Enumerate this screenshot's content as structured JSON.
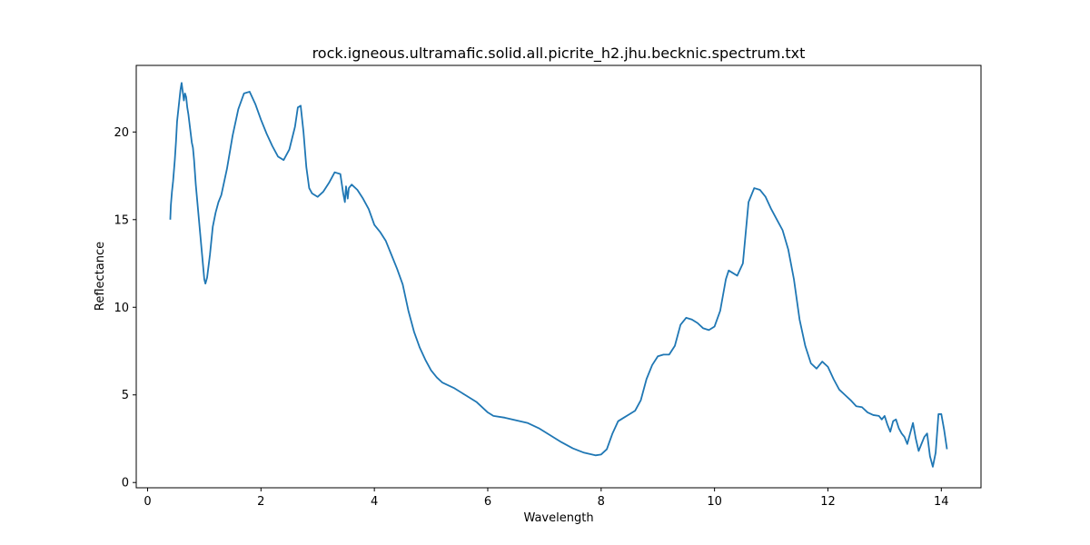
{
  "chart_data": {
    "type": "line",
    "title": "rock.igneous.ultramafic.solid.all.picrite_h2.jhu.becknic.spectrum.txt",
    "xlabel": "Wavelength",
    "ylabel": "Reflectance",
    "xlim": [
      -0.2,
      14.7
    ],
    "ylim": [
      -0.3,
      23.8
    ],
    "x_ticks": [
      0,
      2,
      4,
      6,
      8,
      10,
      12,
      14
    ],
    "y_ticks": [
      0,
      5,
      10,
      15,
      20
    ],
    "grid": false,
    "legend": "none",
    "series": [
      {
        "color": "#1f77b4",
        "points": [
          [
            0.4,
            15.0
          ],
          [
            0.41,
            15.8
          ],
          [
            0.43,
            16.6
          ],
          [
            0.45,
            17.2
          ],
          [
            0.48,
            18.4
          ],
          [
            0.5,
            19.4
          ],
          [
            0.52,
            20.6
          ],
          [
            0.55,
            21.5
          ],
          [
            0.58,
            22.4
          ],
          [
            0.6,
            22.8
          ],
          [
            0.62,
            22.3
          ],
          [
            0.64,
            21.8
          ],
          [
            0.66,
            22.2
          ],
          [
            0.68,
            22.0
          ],
          [
            0.7,
            21.4
          ],
          [
            0.72,
            21.0
          ],
          [
            0.75,
            20.2
          ],
          [
            0.78,
            19.4
          ],
          [
            0.8,
            19.1
          ],
          [
            0.82,
            18.4
          ],
          [
            0.85,
            17.0
          ],
          [
            0.9,
            15.2
          ],
          [
            0.95,
            13.4
          ],
          [
            1.0,
            11.6
          ],
          [
            1.02,
            11.35
          ],
          [
            1.05,
            11.7
          ],
          [
            1.1,
            13.0
          ],
          [
            1.15,
            14.6
          ],
          [
            1.2,
            15.4
          ],
          [
            1.25,
            16.0
          ],
          [
            1.3,
            16.4
          ],
          [
            1.4,
            17.9
          ],
          [
            1.5,
            19.8
          ],
          [
            1.6,
            21.3
          ],
          [
            1.7,
            22.2
          ],
          [
            1.8,
            22.3
          ],
          [
            1.9,
            21.6
          ],
          [
            2.0,
            20.7
          ],
          [
            2.1,
            19.9
          ],
          [
            2.2,
            19.2
          ],
          [
            2.3,
            18.6
          ],
          [
            2.4,
            18.4
          ],
          [
            2.5,
            19.0
          ],
          [
            2.6,
            20.3
          ],
          [
            2.65,
            21.4
          ],
          [
            2.7,
            21.5
          ],
          [
            2.75,
            20.0
          ],
          [
            2.8,
            18.0
          ],
          [
            2.85,
            16.8
          ],
          [
            2.9,
            16.5
          ],
          [
            3.0,
            16.3
          ],
          [
            3.1,
            16.6
          ],
          [
            3.2,
            17.1
          ],
          [
            3.3,
            17.7
          ],
          [
            3.4,
            17.6
          ],
          [
            3.45,
            16.5
          ],
          [
            3.48,
            16.0
          ],
          [
            3.5,
            16.9
          ],
          [
            3.53,
            16.2
          ],
          [
            3.55,
            16.8
          ],
          [
            3.6,
            17.0
          ],
          [
            3.7,
            16.7
          ],
          [
            3.8,
            16.2
          ],
          [
            3.9,
            15.6
          ],
          [
            4.0,
            14.7
          ],
          [
            4.1,
            14.3
          ],
          [
            4.2,
            13.8
          ],
          [
            4.3,
            13.0
          ],
          [
            4.4,
            12.2
          ],
          [
            4.5,
            11.3
          ],
          [
            4.6,
            9.8
          ],
          [
            4.7,
            8.6
          ],
          [
            4.8,
            7.7
          ],
          [
            4.9,
            7.0
          ],
          [
            5.0,
            6.4
          ],
          [
            5.1,
            6.0
          ],
          [
            5.2,
            5.7
          ],
          [
            5.4,
            5.4
          ],
          [
            5.6,
            5.0
          ],
          [
            5.8,
            4.6
          ],
          [
            6.0,
            4.0
          ],
          [
            6.1,
            3.8
          ],
          [
            6.3,
            3.7
          ],
          [
            6.5,
            3.55
          ],
          [
            6.7,
            3.4
          ],
          [
            6.9,
            3.1
          ],
          [
            7.1,
            2.7
          ],
          [
            7.3,
            2.3
          ],
          [
            7.5,
            1.95
          ],
          [
            7.7,
            1.7
          ],
          [
            7.9,
            1.55
          ],
          [
            8.0,
            1.6
          ],
          [
            8.1,
            1.9
          ],
          [
            8.2,
            2.8
          ],
          [
            8.3,
            3.5
          ],
          [
            8.4,
            3.7
          ],
          [
            8.5,
            3.9
          ],
          [
            8.6,
            4.1
          ],
          [
            8.7,
            4.7
          ],
          [
            8.8,
            5.9
          ],
          [
            8.9,
            6.7
          ],
          [
            9.0,
            7.2
          ],
          [
            9.1,
            7.3
          ],
          [
            9.2,
            7.3
          ],
          [
            9.3,
            7.8
          ],
          [
            9.4,
            9.0
          ],
          [
            9.5,
            9.4
          ],
          [
            9.6,
            9.3
          ],
          [
            9.7,
            9.1
          ],
          [
            9.8,
            8.8
          ],
          [
            9.9,
            8.7
          ],
          [
            10.0,
            8.9
          ],
          [
            10.1,
            9.8
          ],
          [
            10.2,
            11.6
          ],
          [
            10.25,
            12.1
          ],
          [
            10.3,
            12.0
          ],
          [
            10.4,
            11.8
          ],
          [
            10.5,
            12.5
          ],
          [
            10.6,
            16.0
          ],
          [
            10.7,
            16.8
          ],
          [
            10.8,
            16.7
          ],
          [
            10.9,
            16.3
          ],
          [
            11.0,
            15.6
          ],
          [
            11.1,
            15.0
          ],
          [
            11.2,
            14.4
          ],
          [
            11.3,
            13.3
          ],
          [
            11.4,
            11.6
          ],
          [
            11.5,
            9.3
          ],
          [
            11.6,
            7.8
          ],
          [
            11.7,
            6.8
          ],
          [
            11.8,
            6.5
          ],
          [
            11.9,
            6.9
          ],
          [
            12.0,
            6.6
          ],
          [
            12.1,
            5.9
          ],
          [
            12.2,
            5.3
          ],
          [
            12.3,
            5.0
          ],
          [
            12.4,
            4.7
          ],
          [
            12.5,
            4.35
          ],
          [
            12.6,
            4.3
          ],
          [
            12.7,
            4.0
          ],
          [
            12.8,
            3.85
          ],
          [
            12.9,
            3.8
          ],
          [
            12.95,
            3.6
          ],
          [
            13.0,
            3.8
          ],
          [
            13.05,
            3.3
          ],
          [
            13.1,
            2.9
          ],
          [
            13.15,
            3.5
          ],
          [
            13.2,
            3.6
          ],
          [
            13.25,
            3.1
          ],
          [
            13.3,
            2.8
          ],
          [
            13.35,
            2.6
          ],
          [
            13.4,
            2.2
          ],
          [
            13.45,
            2.8
          ],
          [
            13.5,
            3.4
          ],
          [
            13.55,
            2.5
          ],
          [
            13.6,
            1.8
          ],
          [
            13.65,
            2.2
          ],
          [
            13.7,
            2.6
          ],
          [
            13.75,
            2.8
          ],
          [
            13.8,
            1.5
          ],
          [
            13.85,
            0.9
          ],
          [
            13.9,
            1.7
          ],
          [
            13.95,
            3.9
          ],
          [
            14.0,
            3.9
          ],
          [
            14.05,
            3.0
          ],
          [
            14.1,
            1.9
          ]
        ]
      }
    ]
  }
}
